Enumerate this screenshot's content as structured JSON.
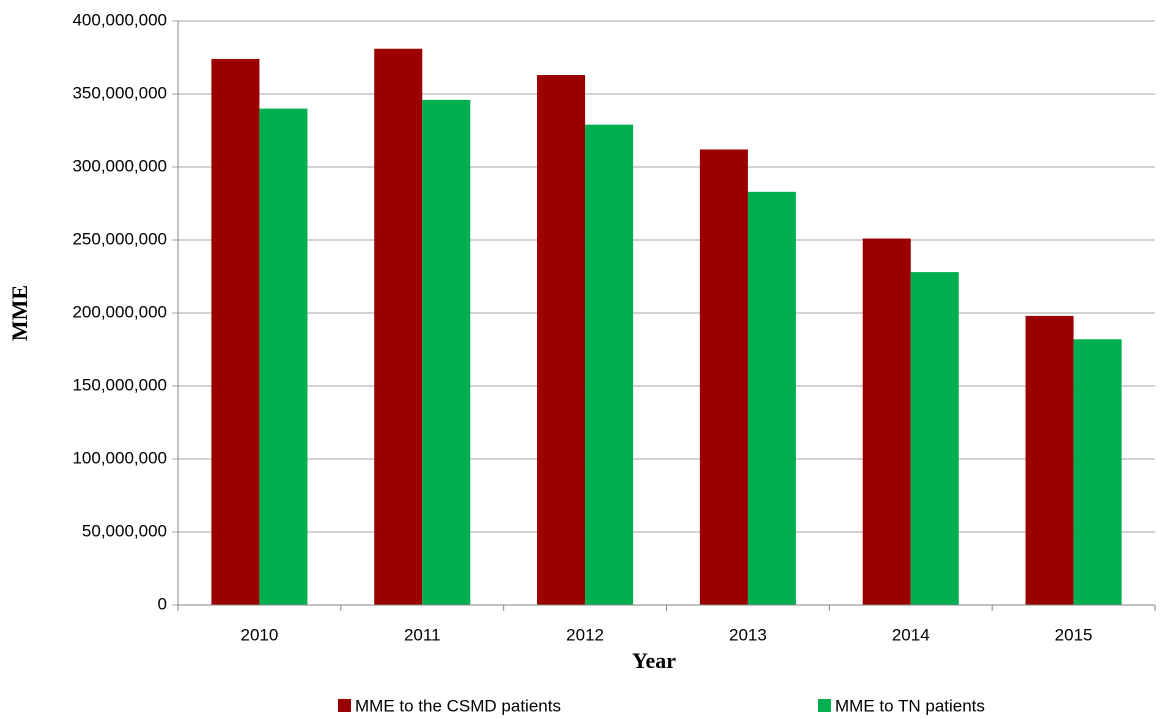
{
  "chart_data": {
    "type": "bar",
    "x_label": "Year",
    "y_label": "MME",
    "categories": [
      "2010",
      "2011",
      "2012",
      "2013",
      "2014",
      "2015"
    ],
    "series": [
      {
        "name": "MME to the CSMD patients",
        "color": "#9b0000",
        "values": [
          374000000,
          381000000,
          363000000,
          312000000,
          251000000,
          198000000
        ]
      },
      {
        "name": "MME to TN patients",
        "color": "#00b050",
        "values": [
          340000000,
          346000000,
          329000000,
          283000000,
          228000000,
          182000000
        ]
      }
    ],
    "ylim": [
      0,
      400000000
    ],
    "yticks": [
      0,
      {
        "value": 50000000,
        "label": "50,000,000"
      },
      {
        "value": 100000000,
        "label": "100,000,000"
      },
      {
        "value": 150000000,
        "label": "150,000,000"
      },
      {
        "value": 200000000,
        "label": "200,000,000"
      },
      {
        "value": 250000000,
        "label": "250,000,000"
      },
      {
        "value": 300000000,
        "label": "300,000,000"
      },
      {
        "value": 350000000,
        "label": "350,000,000"
      },
      {
        "value": 400000000,
        "label": "400,000,000"
      }
    ],
    "grid": true,
    "legend": "bottom"
  }
}
